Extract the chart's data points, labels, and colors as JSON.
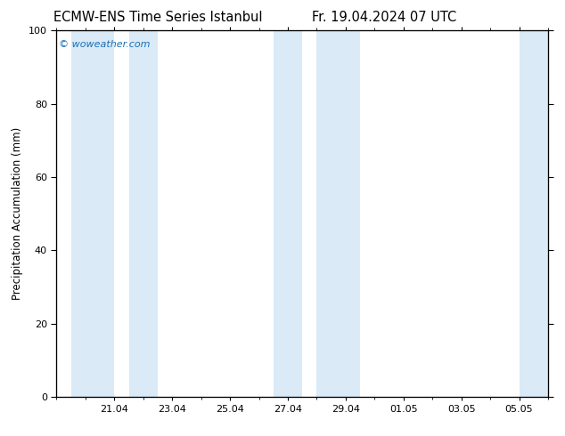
{
  "title_left": "ECMW-ENS Time Series Istanbul",
  "title_right": "Fr. 19.04.2024 07 UTC",
  "ylabel": "Precipitation Accumulation (mm)",
  "ylim": [
    0,
    100
  ],
  "yticks": [
    0,
    20,
    40,
    60,
    80,
    100
  ],
  "background_color": "#ffffff",
  "plot_bg_color": "#ffffff",
  "shaded_band_color": "#daeaf6",
  "watermark_text": "© woweather.com",
  "watermark_color": "#1a6eb5",
  "title_fontsize": 10.5,
  "label_fontsize": 8.5,
  "tick_fontsize": 8,
  "x_tick_labels": [
    "21.04",
    "23.04",
    "25.04",
    "27.04",
    "29.04",
    "01.05",
    "03.05",
    "05.05"
  ],
  "x_tick_positions": [
    2,
    4,
    6,
    8,
    10,
    12,
    14,
    16
  ],
  "x_minor_tick_positions": [
    0,
    1,
    2,
    3,
    4,
    5,
    6,
    7,
    8,
    9,
    10,
    11,
    12,
    13,
    14,
    15,
    16,
    17
  ],
  "x_start": 0,
  "x_end": 17,
  "shaded_bands": [
    {
      "x_start": 0.5,
      "x_end": 2.0
    },
    {
      "x_start": 2.5,
      "x_end": 3.5
    },
    {
      "x_start": 7.5,
      "x_end": 8.5
    },
    {
      "x_start": 9.0,
      "x_end": 10.5
    },
    {
      "x_start": 16.0,
      "x_end": 17.0
    }
  ]
}
